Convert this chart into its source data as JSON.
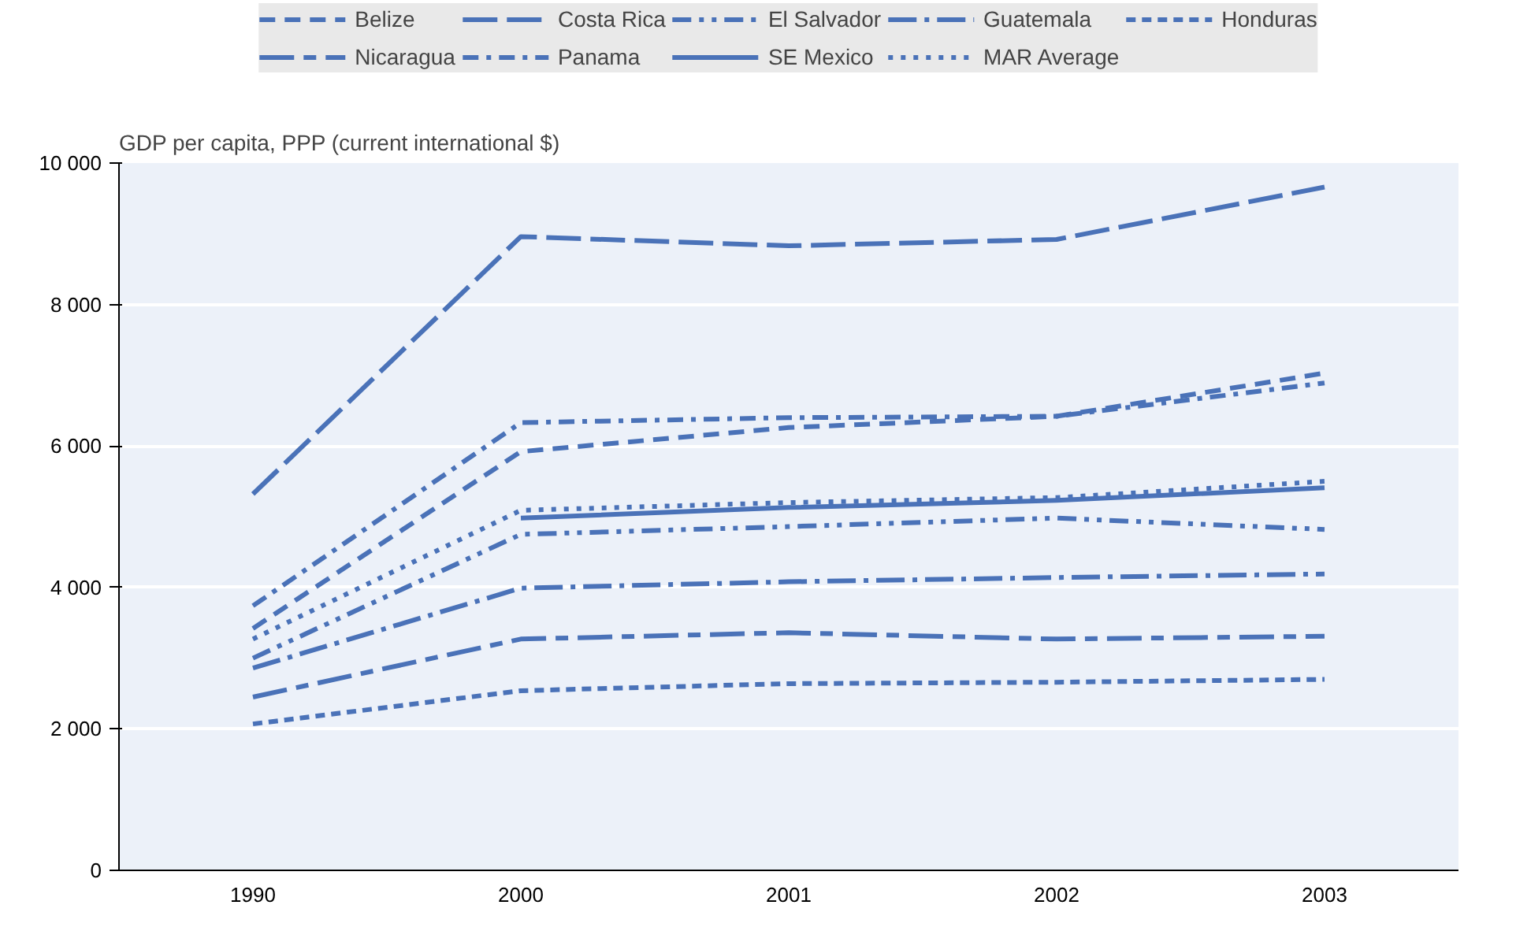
{
  "chart_data": {
    "type": "line",
    "ylabel": "GDP per capita, PPP (current international $)",
    "categories": [
      "1990",
      "2000",
      "2001",
      "2002",
      "2003"
    ],
    "ylim": [
      0,
      10000
    ],
    "yticks": [
      0,
      {
        "value": 2000,
        "label": "2 000"
      },
      {
        "value": 4000,
        "label": "4 000"
      },
      {
        "value": 6000,
        "label": "6 000"
      },
      {
        "value": 8000,
        "label": "8 000"
      },
      {
        "value": 10000,
        "label": "10 000"
      }
    ],
    "grid": "y",
    "legend": "top",
    "marker": "none",
    "series": [
      {
        "name": "Belize",
        "color": "#4a72b8",
        "line_style": "dashed",
        "values": [
          3420,
          5920,
          6260,
          6420,
          7030
        ]
      },
      {
        "name": "Costa Rica",
        "color": "#4a72b8",
        "line_style": "longdash",
        "values": [
          5320,
          8960,
          8830,
          8920,
          9660
        ]
      },
      {
        "name": "El Salvador",
        "color": "#4a72b8",
        "line_style": "dashdotdot",
        "values": [
          3000,
          4750,
          4860,
          4980,
          4820
        ]
      },
      {
        "name": "Guatemala",
        "color": "#4a72b8",
        "line_style": "longdashdot",
        "values": [
          2860,
          3990,
          4080,
          4140,
          4190
        ]
      },
      {
        "name": "Honduras",
        "color": "#4a72b8",
        "line_style": "shortdash",
        "values": [
          2070,
          2540,
          2640,
          2660,
          2700
        ]
      },
      {
        "name": "Nicaragua",
        "color": "#4a72b8",
        "line_style": "longshort",
        "values": [
          2450,
          3270,
          3360,
          3270,
          3310
        ]
      },
      {
        "name": "Panama",
        "color": "#4a72b8",
        "line_style": "dashdot",
        "values": [
          3740,
          6330,
          6400,
          6420,
          6890
        ]
      },
      {
        "name": "SE Mexico",
        "color": "#4a72b8",
        "line_style": "solid",
        "values": [
          null,
          4980,
          5130,
          5230,
          5410
        ]
      },
      {
        "name": "MAR Average",
        "color": "#4a72b8",
        "line_style": "dotted",
        "values": [
          3270,
          5090,
          5200,
          5270,
          5500
        ]
      }
    ]
  }
}
